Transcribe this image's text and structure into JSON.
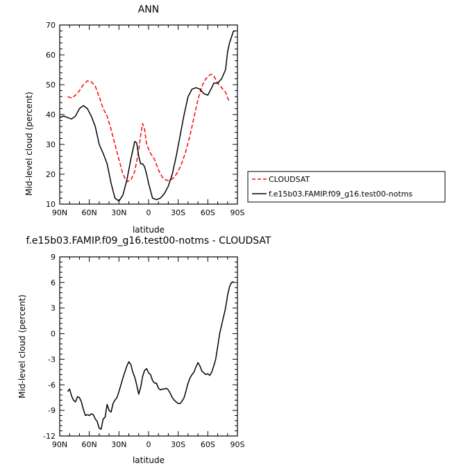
{
  "chart_data": [
    {
      "type": "line",
      "title": "ANN",
      "xlabel": "latitude",
      "ylabel": "Mid-level cloud (percent)",
      "xlim": [
        90,
        -90
      ],
      "ylim": [
        10,
        70
      ],
      "x_ticks": [
        90,
        60,
        30,
        0,
        -30,
        -60,
        -90
      ],
      "x_tick_labels": [
        "90N",
        "60N",
        "30N",
        "0",
        "30S",
        "60S",
        "90S"
      ],
      "y_ticks": [
        10,
        20,
        30,
        40,
        50,
        60,
        70
      ],
      "y_tick_labels": [
        "10",
        "20",
        "30",
        "40",
        "50",
        "60",
        "70"
      ],
      "legend_position": "right",
      "series": [
        {
          "name": "CLOUDSAT",
          "color": "#ff0000",
          "dash": "dashed",
          "x": [
            82,
            78,
            74,
            70,
            66,
            62,
            58,
            54,
            50,
            46,
            42,
            38,
            34,
            30,
            26,
            22,
            18,
            14,
            10,
            8,
            6,
            4,
            2,
            0,
            -2,
            -6,
            -10,
            -14,
            -18,
            -22,
            -26,
            -30,
            -34,
            -38,
            -42,
            -46,
            -50,
            -54,
            -58,
            -62,
            -64,
            -66,
            -70,
            -74,
            -78,
            -82
          ],
          "y": [
            46,
            45.5,
            46.5,
            48,
            50,
            51.3,
            51,
            49.5,
            46,
            42,
            39.5,
            35,
            30,
            25,
            20,
            17.5,
            18,
            21,
            28,
            33,
            37,
            35,
            30,
            28.5,
            27,
            25,
            21.5,
            19,
            18,
            18,
            19,
            21,
            24,
            28,
            33,
            39,
            45,
            49.5,
            52,
            53.3,
            53.5,
            53,
            50.5,
            49,
            47.5,
            44
          ]
        },
        {
          "name": "f.e15b03.FAMIP.f09_g16.test00-notms",
          "color": "#000000",
          "dash": "solid",
          "x": [
            90,
            86,
            82,
            78,
            74,
            70,
            66,
            62,
            58,
            54,
            50,
            46,
            42,
            38,
            34,
            30,
            26,
            22,
            18,
            14,
            12,
            10,
            8,
            6,
            4,
            2,
            0,
            -2,
            -4,
            -8,
            -12,
            -16,
            -20,
            -24,
            -28,
            -32,
            -36,
            -40,
            -44,
            -48,
            -52,
            -56,
            -60,
            -64,
            -66,
            -68,
            -70,
            -74,
            -78,
            -80,
            -82,
            -84,
            -86,
            -88
          ],
          "y": [
            39,
            39.5,
            39,
            38.5,
            39.5,
            42,
            43,
            42,
            39.5,
            36,
            30,
            27,
            23.5,
            17,
            12,
            11,
            13,
            18,
            25,
            31,
            30.5,
            26,
            23.5,
            23.5,
            22.5,
            20,
            17,
            14.5,
            12,
            11.5,
            12,
            13.5,
            16,
            20,
            26,
            33,
            40,
            46,
            48.5,
            49,
            48.5,
            47,
            46.5,
            49,
            50.5,
            50.5,
            50.5,
            52,
            55,
            61,
            64,
            66,
            68,
            68
          ]
        }
      ]
    },
    {
      "type": "line",
      "title": "f.e15b03.FAMIP.f09_g16.test00-notms - CLOUDSAT",
      "xlabel": "latitude",
      "ylabel": "Mid-level cloud (percent)",
      "xlim": [
        90,
        -90
      ],
      "ylim": [
        -12,
        9
      ],
      "x_ticks": [
        90,
        60,
        30,
        0,
        -30,
        -60,
        -90
      ],
      "x_tick_labels": [
        "90N",
        "60N",
        "30N",
        "0",
        "30S",
        "60S",
        "90S"
      ],
      "y_ticks": [
        -12,
        -9,
        -6,
        -3,
        0,
        3,
        6,
        9
      ],
      "y_tick_labels": [
        "-12",
        "-9",
        "-6",
        "-3",
        "0",
        "3",
        "6",
        "9"
      ],
      "series": [
        {
          "color": "#000000",
          "dash": "solid",
          "x": [
            82,
            80,
            78,
            76,
            74,
            72,
            70,
            68,
            66,
            64,
            62,
            60,
            58,
            56,
            54,
            52,
            50,
            48,
            46,
            44,
            42,
            40,
            38,
            36,
            34,
            32,
            30,
            28,
            26,
            24,
            22,
            20,
            18,
            16,
            14,
            12,
            10,
            8,
            6,
            4,
            2,
            0,
            -2,
            -4,
            -6,
            -8,
            -10,
            -12,
            -14,
            -16,
            -18,
            -20,
            -22,
            -24,
            -26,
            -28,
            -30,
            -32,
            -34,
            -36,
            -38,
            -40,
            -42,
            -44,
            -46,
            -48,
            -50,
            -52,
            -54,
            -56,
            -58,
            -60,
            -62,
            -64,
            -66,
            -68,
            -70,
            -72,
            -74,
            -76,
            -78,
            -80,
            -82,
            -84,
            -86
          ],
          "y": [
            -6.8,
            -6.5,
            -7.3,
            -7.8,
            -8,
            -7.4,
            -7.5,
            -8,
            -8.9,
            -9.6,
            -9.5,
            -9.6,
            -9.4,
            -9.5,
            -10,
            -10.3,
            -11.1,
            -11.2,
            -10,
            -9.8,
            -8.3,
            -9,
            -9.2,
            -8.2,
            -7.8,
            -7.5,
            -6.8,
            -6,
            -5.2,
            -4.5,
            -3.8,
            -3.3,
            -3.6,
            -4.5,
            -5.1,
            -6,
            -7.1,
            -6.3,
            -5,
            -4.3,
            -4.1,
            -4.6,
            -4.8,
            -5.5,
            -5.8,
            -5.8,
            -6.4,
            -6.6,
            -6.5,
            -6.5,
            -6.4,
            -6.6,
            -7,
            -7.5,
            -7.8,
            -8,
            -8.2,
            -8.2,
            -7.9,
            -7.5,
            -6.7,
            -5.8,
            -5.2,
            -4.8,
            -4.5,
            -3.9,
            -3.4,
            -3.8,
            -4.4,
            -4.6,
            -4.8,
            -4.7,
            -4.9,
            -4.5,
            -3.8,
            -3,
            -1.5,
            0,
            1,
            2,
            3,
            4.5,
            5.5,
            6,
            6.1
          ]
        }
      ]
    }
  ]
}
